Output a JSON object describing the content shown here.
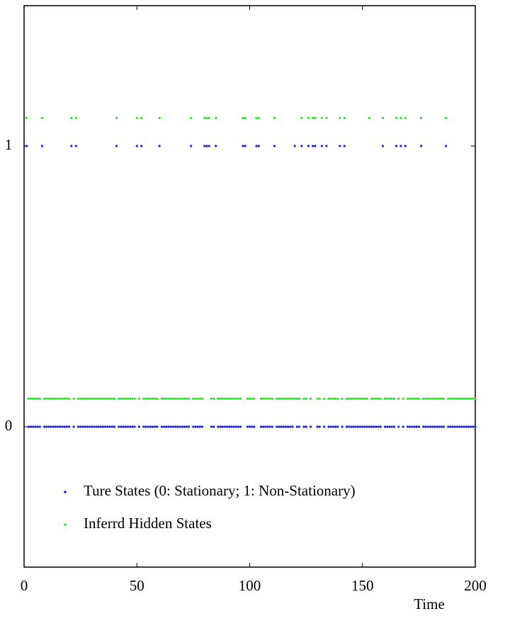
{
  "chart_data": {
    "type": "scatter",
    "x": [
      1,
      2,
      3,
      4,
      5,
      6,
      7,
      8,
      9,
      10,
      11,
      12,
      13,
      14,
      15,
      16,
      17,
      18,
      19,
      20,
      21,
      22,
      23,
      24,
      25,
      26,
      27,
      28,
      29,
      30,
      31,
      32,
      33,
      34,
      35,
      36,
      37,
      38,
      39,
      40,
      41,
      42,
      43,
      44,
      45,
      46,
      47,
      48,
      49,
      50,
      51,
      52,
      53,
      54,
      55,
      56,
      57,
      58,
      59,
      60,
      61,
      62,
      63,
      64,
      65,
      66,
      67,
      68,
      69,
      70,
      71,
      72,
      73,
      74,
      75,
      76,
      77,
      78,
      79,
      80,
      81,
      82,
      83,
      84,
      85,
      86,
      87,
      88,
      89,
      90,
      91,
      92,
      93,
      94,
      95,
      96,
      97,
      98,
      99,
      100,
      101,
      102,
      103,
      104,
      105,
      106,
      107,
      108,
      109,
      110,
      111,
      112,
      113,
      114,
      115,
      116,
      117,
      118,
      119,
      120,
      121,
      122,
      123,
      124,
      125,
      126,
      127,
      128,
      129,
      130,
      131,
      132,
      133,
      134,
      135,
      136,
      137,
      138,
      139,
      140,
      141,
      142,
      143,
      144,
      145,
      146,
      147,
      148,
      149,
      150,
      151,
      152,
      153,
      154,
      155,
      156,
      157,
      158,
      159,
      160,
      161,
      162,
      163,
      164,
      165,
      166,
      167,
      168,
      169,
      170,
      171,
      172,
      173,
      174,
      175,
      176,
      177,
      178,
      179,
      180,
      181,
      182,
      183,
      184,
      185,
      186,
      187,
      188,
      189,
      190,
      191,
      192,
      193,
      194,
      195,
      196,
      197,
      198,
      199,
      200
    ],
    "series": [
      {
        "name": "Ture States (0: Stationary; 1: Non-Stationary)",
        "color": "#1f1fe0",
        "values": [
          1,
          0,
          0,
          0,
          0,
          0,
          0,
          1,
          0,
          0,
          0,
          0,
          0,
          0,
          0,
          0,
          0,
          0,
          0,
          0,
          1,
          0,
          1,
          0,
          0,
          0,
          0,
          0,
          0,
          0,
          0,
          0,
          0,
          0,
          0,
          0,
          0,
          0,
          0,
          0,
          1,
          0,
          0,
          0,
          0,
          0,
          0,
          0,
          0,
          1,
          0,
          1,
          0,
          0,
          0,
          0,
          0,
          0,
          0,
          1,
          0,
          0,
          0,
          0,
          0,
          0,
          0,
          0,
          0,
          0,
          0,
          0,
          0,
          1,
          0,
          0,
          0,
          0,
          0,
          1,
          1,
          1,
          0,
          0,
          1,
          0,
          0,
          0,
          0,
          0,
          0,
          0,
          0,
          0,
          0,
          0,
          1,
          1,
          0,
          0,
          0,
          0,
          1,
          1,
          0,
          0,
          0,
          0,
          0,
          0,
          1,
          0,
          0,
          0,
          0,
          0,
          0,
          0,
          0,
          1,
          0,
          0,
          1,
          0,
          0,
          1,
          0,
          1,
          1,
          0,
          0,
          1,
          0,
          1,
          0,
          0,
          0,
          0,
          0,
          1,
          0,
          1,
          0,
          0,
          0,
          0,
          0,
          0,
          0,
          0,
          0,
          0,
          0,
          0,
          0,
          0,
          0,
          0,
          1,
          0,
          0,
          0,
          0,
          0,
          1,
          0,
          1,
          0,
          1,
          0,
          0,
          0,
          0,
          0,
          0,
          1,
          0,
          0,
          0,
          0,
          0,
          0,
          0,
          0,
          0,
          0,
          1,
          0,
          0,
          0,
          0,
          0,
          0,
          0,
          0,
          0,
          0,
          0,
          0,
          0
        ]
      },
      {
        "name": "Inferrd Hidden States",
        "color": "#22ee22",
        "values": [
          1.1,
          0.1,
          0.1,
          0.1,
          0.1,
          0.1,
          0.1,
          1.1,
          0.1,
          0.1,
          0.1,
          0.1,
          0.1,
          0.1,
          0.1,
          0.1,
          0.1,
          0.1,
          0.1,
          0.1,
          1.1,
          0.1,
          1.1,
          0.1,
          0.1,
          0.1,
          0.1,
          0.1,
          0.1,
          0.1,
          0.1,
          0.1,
          0.1,
          0.1,
          0.1,
          0.1,
          0.1,
          0.1,
          0.1,
          0.1,
          1.1,
          0.1,
          0.1,
          0.1,
          0.1,
          0.1,
          0.1,
          0.1,
          0.1,
          1.1,
          0.1,
          1.1,
          0.1,
          0.1,
          0.1,
          0.1,
          0.1,
          0.1,
          0.1,
          1.1,
          0.1,
          0.1,
          0.1,
          0.1,
          0.1,
          0.1,
          0.1,
          0.1,
          0.1,
          0.1,
          0.1,
          0.1,
          0.1,
          1.1,
          0.1,
          0.1,
          0.1,
          0.1,
          0.1,
          1.1,
          1.1,
          1.1,
          0.1,
          0.1,
          1.1,
          0.1,
          0.1,
          0.1,
          0.1,
          0.1,
          0.1,
          0.1,
          0.1,
          0.1,
          0.1,
          0.1,
          1.1,
          1.1,
          0.1,
          0.1,
          0.1,
          0.1,
          1.1,
          1.1,
          0.1,
          0.1,
          0.1,
          0.1,
          0.1,
          0.1,
          1.1,
          0.1,
          0.1,
          0.1,
          0.1,
          0.1,
          0.1,
          0.1,
          0.1,
          0.1,
          0.1,
          0.1,
          1.1,
          0.1,
          0.1,
          1.1,
          0.1,
          1.1,
          1.1,
          0.1,
          0.1,
          1.1,
          0.1,
          1.1,
          0.1,
          0.1,
          0.1,
          0.1,
          0.1,
          1.1,
          0.1,
          1.1,
          0.1,
          0.1,
          0.1,
          0.1,
          0.1,
          0.1,
          0.1,
          0.1,
          0.1,
          0.1,
          1.1,
          0.1,
          0.1,
          0.1,
          0.1,
          0.1,
          1.1,
          0.1,
          0.1,
          0.1,
          0.1,
          0.1,
          1.1,
          0.1,
          1.1,
          0.1,
          1.1,
          0.1,
          0.1,
          0.1,
          0.1,
          0.1,
          0.1,
          1.1,
          0.1,
          0.1,
          0.1,
          0.1,
          0.1,
          0.1,
          0.1,
          0.1,
          0.1,
          0.1,
          1.1,
          0.1,
          0.1,
          0.1,
          0.1,
          0.1,
          0.1,
          0.1,
          0.1,
          0.1,
          0.1,
          0.1,
          0.1,
          0.1
        ]
      }
    ],
    "x_label": "Time",
    "xlim": [
      0,
      200
    ],
    "xticks": [
      0,
      50,
      100,
      150,
      200
    ],
    "ylim": [
      -0.5,
      1.5
    ],
    "yticks": [
      0,
      1
    ],
    "grid": false,
    "legend": "lower left"
  }
}
